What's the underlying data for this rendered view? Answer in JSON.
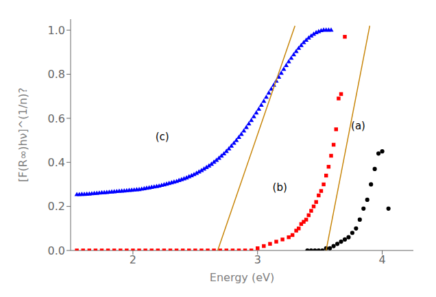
{
  "chart_data": {
    "type": "scatter",
    "xlabel": "Energy (eV)",
    "ylabel": "[F(R∞)hν]^(1/n)?",
    "xlim": [
      1.5,
      4.25
    ],
    "ylim": [
      0.0,
      1.05
    ],
    "xticks": [
      2,
      3,
      4
    ],
    "yticks": [
      {
        "value": 0.0,
        "label": "0.0"
      },
      0.2,
      0.4,
      0.6,
      0.8,
      {
        "value": 1.0,
        "label": "1.0"
      }
    ],
    "series": [
      {
        "type": "scatter",
        "color": "blue",
        "marker": "triangle",
        "x": [
          1.55,
          1.57,
          1.59,
          1.61,
          1.63,
          1.65,
          1.67,
          1.69,
          1.71,
          1.73,
          1.75,
          1.77,
          1.79,
          1.81,
          1.83,
          1.85,
          1.87,
          1.89,
          1.91,
          1.93,
          1.95,
          1.97,
          1.99,
          2.01,
          2.03,
          2.05,
          2.07,
          2.09,
          2.11,
          2.13,
          2.15,
          2.17,
          2.19,
          2.21,
          2.23,
          2.25,
          2.27,
          2.29,
          2.31,
          2.33,
          2.35,
          2.37,
          2.39,
          2.41,
          2.43,
          2.45,
          2.47,
          2.49,
          2.51,
          2.53,
          2.55,
          2.57,
          2.59,
          2.61,
          2.63,
          2.65,
          2.67,
          2.69,
          2.71,
          2.73,
          2.75,
          2.77,
          2.79,
          2.81,
          2.83,
          2.85,
          2.87,
          2.89,
          2.91,
          2.93,
          2.95,
          2.97,
          2.99,
          3.01,
          3.03,
          3.05,
          3.07,
          3.09,
          3.11,
          3.13,
          3.15,
          3.17,
          3.19,
          3.21,
          3.23,
          3.25,
          3.27,
          3.29,
          3.31,
          3.33,
          3.35,
          3.37,
          3.39,
          3.41,
          3.43,
          3.45,
          3.47,
          3.49,
          3.51,
          3.53,
          3.55,
          3.57,
          3.59
        ],
        "values": [
          0.253,
          0.253,
          0.254,
          0.254,
          0.255,
          0.256,
          0.257,
          0.258,
          0.259,
          0.26,
          0.261,
          0.262,
          0.263,
          0.264,
          0.265,
          0.266,
          0.267,
          0.268,
          0.269,
          0.27,
          0.271,
          0.272,
          0.273,
          0.274,
          0.275,
          0.276,
          0.278,
          0.28,
          0.282,
          0.284,
          0.286,
          0.288,
          0.29,
          0.292,
          0.295,
          0.298,
          0.301,
          0.304,
          0.307,
          0.31,
          0.313,
          0.317,
          0.321,
          0.325,
          0.329,
          0.334,
          0.339,
          0.344,
          0.35,
          0.356,
          0.362,
          0.369,
          0.376,
          0.383,
          0.391,
          0.4,
          0.409,
          0.418,
          0.428,
          0.438,
          0.449,
          0.461,
          0.473,
          0.486,
          0.499,
          0.513,
          0.527,
          0.542,
          0.558,
          0.574,
          0.59,
          0.607,
          0.624,
          0.641,
          0.659,
          0.677,
          0.695,
          0.714,
          0.732,
          0.75,
          0.768,
          0.786,
          0.804,
          0.822,
          0.839,
          0.856,
          0.872,
          0.888,
          0.903,
          0.917,
          0.93,
          0.943,
          0.954,
          0.964,
          0.973,
          0.981,
          0.988,
          0.993,
          0.997,
          1.0,
          1.0,
          1.0,
          1.0
        ]
      },
      {
        "type": "scatter",
        "color": "red",
        "marker": "square",
        "x": [
          1.55,
          1.6,
          1.65,
          1.7,
          1.75,
          1.8,
          1.85,
          1.9,
          1.95,
          2.0,
          2.05,
          2.1,
          2.15,
          2.2,
          2.25,
          2.3,
          2.35,
          2.4,
          2.45,
          2.5,
          2.55,
          2.6,
          2.65,
          2.7,
          2.75,
          2.8,
          2.85,
          2.9,
          2.95,
          3.0,
          3.05,
          3.1,
          3.15,
          3.2,
          3.25,
          3.28,
          3.31,
          3.33,
          3.35,
          3.37,
          3.39,
          3.41,
          3.43,
          3.45,
          3.47,
          3.49,
          3.51,
          3.53,
          3.55,
          3.57,
          3.59,
          3.61,
          3.63,
          3.65,
          3.67,
          3.7
        ],
        "values": [
          0.0,
          0.0,
          0.0,
          0.0,
          0.0,
          0.0,
          0.0,
          0.0,
          0.0,
          0.0,
          0.0,
          0.0,
          0.0,
          0.0,
          0.0,
          0.0,
          0.0,
          0.0,
          0.0,
          0.0,
          0.0,
          0.0,
          0.0,
          0.0,
          0.0,
          0.0,
          0.0,
          0.0,
          0.0,
          0.01,
          0.02,
          0.03,
          0.04,
          0.05,
          0.06,
          0.07,
          0.09,
          0.1,
          0.12,
          0.13,
          0.14,
          0.16,
          0.18,
          0.2,
          0.22,
          0.25,
          0.27,
          0.3,
          0.34,
          0.38,
          0.43,
          0.48,
          0.55,
          0.69,
          0.71,
          0.97
        ]
      },
      {
        "type": "scatter",
        "color": "black",
        "marker": "circle",
        "x": [
          3.4,
          3.43,
          3.46,
          3.49,
          3.52,
          3.55,
          3.58,
          3.61,
          3.64,
          3.67,
          3.7,
          3.73,
          3.76,
          3.79,
          3.82,
          3.85,
          3.88,
          3.91,
          3.94,
          3.97,
          4.0,
          4.05
        ],
        "values": [
          0.0,
          0.0,
          0.0,
          0.0,
          0.0,
          0.01,
          0.01,
          0.02,
          0.03,
          0.04,
          0.05,
          0.06,
          0.08,
          0.1,
          0.14,
          0.19,
          0.23,
          0.3,
          0.37,
          0.44,
          0.45,
          0.19
        ]
      },
      {
        "type": "line",
        "color": "#C8860A",
        "x": [
          2.68,
          3.3
        ],
        "values": [
          0.0,
          1.02
        ]
      },
      {
        "type": "line",
        "color": "#C8860A",
        "x": [
          3.55,
          3.9
        ],
        "values": [
          0.0,
          1.02
        ]
      }
    ],
    "annotations": [
      {
        "text": "(c)",
        "x": 2.18,
        "y": 0.5
      },
      {
        "text": "(b)",
        "x": 3.12,
        "y": 0.27
      },
      {
        "text": "(a)",
        "x": 3.75,
        "y": 0.55
      }
    ]
  }
}
